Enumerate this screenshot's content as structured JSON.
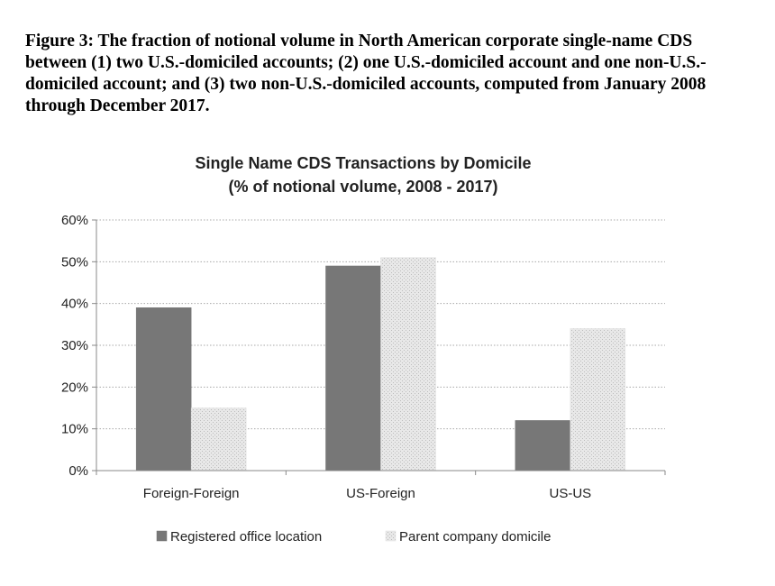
{
  "figure": {
    "caption": "Figure 3: The fraction of notional volume in North American corporate single-name CDS between (1) two U.S.-domiciled accounts; (2) one U.S.-domiciled account and one non-U.S.-domiciled account; and (3) two non-U.S.-domiciled accounts, computed from January 2008 through December 2017."
  },
  "colors": {
    "registered": "#777777",
    "parent": "#dcdcdc",
    "grid": "#a8a8a8",
    "axis": "#888888"
  },
  "chart_data": {
    "type": "bar",
    "title": "Single Name CDS Transactions by Domicile",
    "subtitle": "(% of notional volume, 2008 - 2017)",
    "xlabel": "",
    "ylabel": "",
    "categories": [
      "Foreign-Foreign",
      "US-Foreign",
      "US-US"
    ],
    "series": [
      {
        "name": "Registered office location",
        "values": [
          39,
          49,
          12
        ],
        "pattern": "solid-dark"
      },
      {
        "name": "Parent company domicile",
        "values": [
          15,
          51,
          34
        ],
        "pattern": "dotted-light"
      }
    ],
    "ylim": [
      0,
      60
    ],
    "yticks": [
      0,
      10,
      20,
      30,
      40,
      50,
      60
    ],
    "ytick_labels": [
      "0%",
      "10%",
      "20%",
      "30%",
      "40%",
      "50%",
      "60%"
    ],
    "grid": true,
    "legend": "bottom"
  }
}
